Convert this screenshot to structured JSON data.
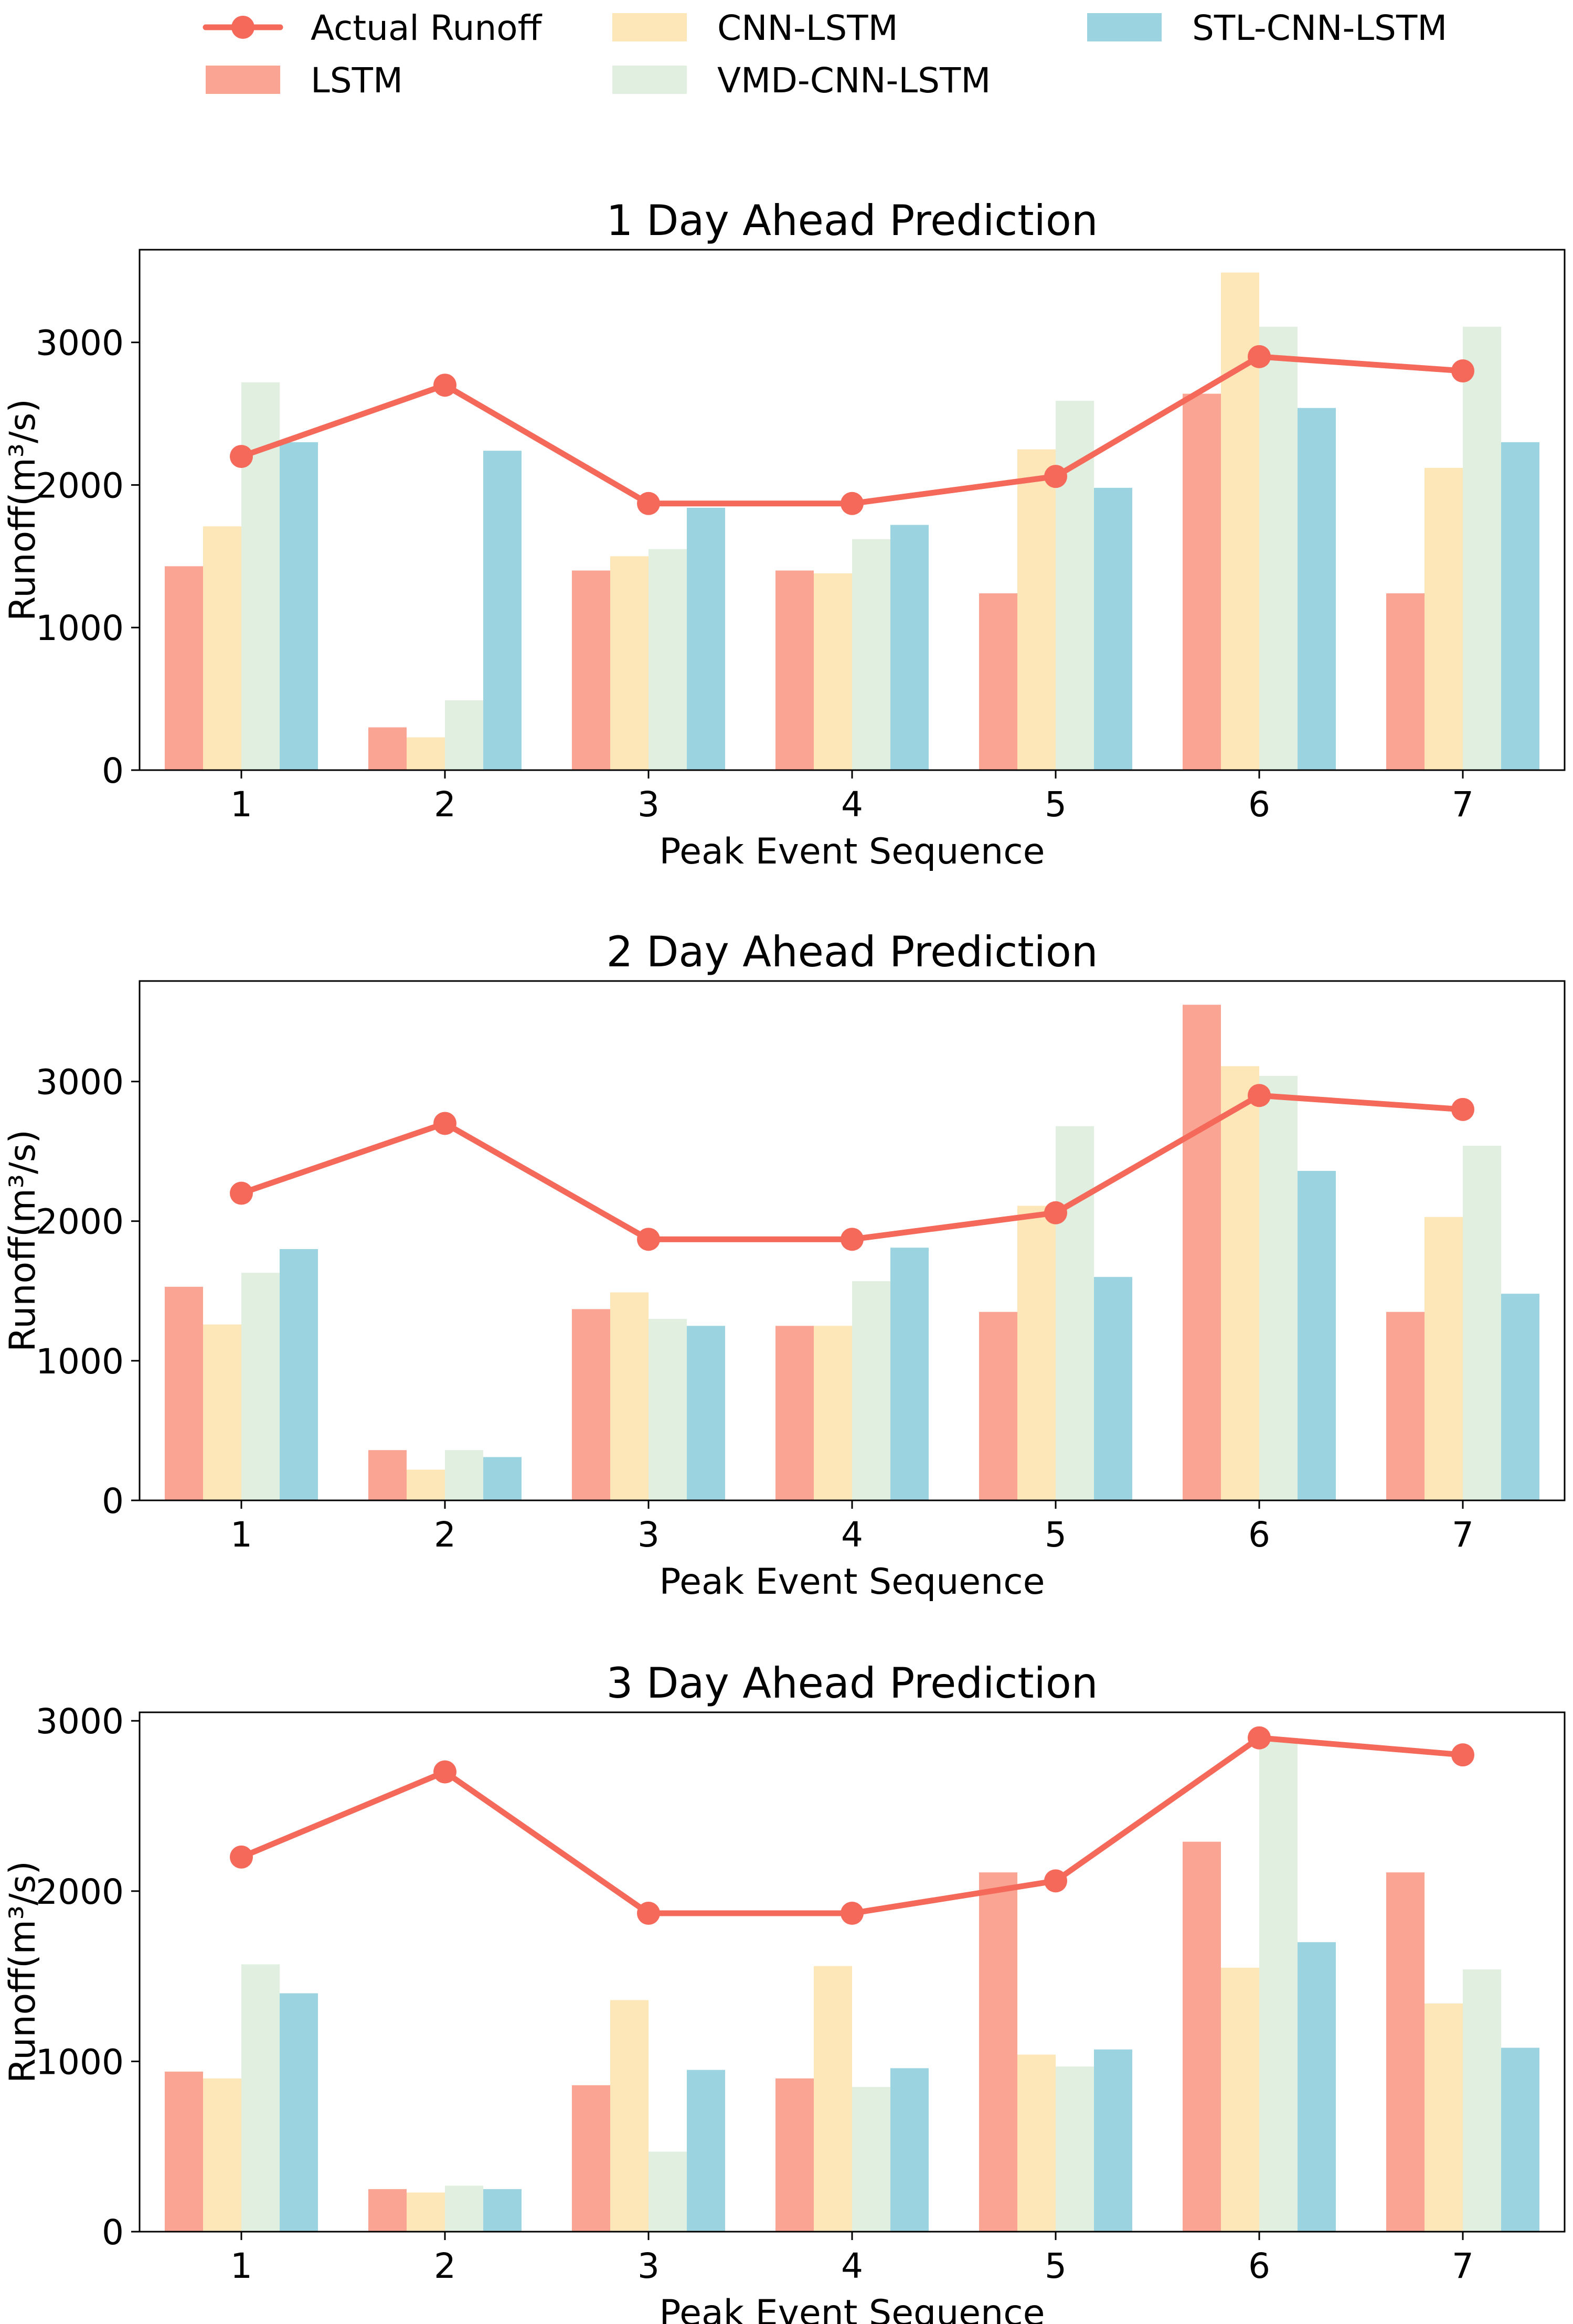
{
  "legend": {
    "items": [
      {
        "label": "Actual Runoff",
        "kind": "line",
        "color": "#F4695A"
      },
      {
        "label": "LSTM",
        "kind": "bar",
        "color": "#FAA593"
      },
      {
        "label": "CNN-LSTM",
        "kind": "bar",
        "color": "#FDE7B8"
      },
      {
        "label": "VMD-CNN-LSTM",
        "kind": "bar",
        "color": "#E0EFDF"
      },
      {
        "label": "STL-CNN-LSTM",
        "kind": "bar",
        "color": "#9BD3E0"
      }
    ]
  },
  "chart_data": [
    {
      "type": "bar",
      "title": "1 Day Ahead Prediction",
      "xlabel": "Peak Event Sequence",
      "ylabel": "Runoff(m³/s)",
      "categories": [
        "1",
        "2",
        "3",
        "4",
        "5",
        "6",
        "7"
      ],
      "ylim": [
        0,
        3650
      ],
      "yticks": [
        0,
        1000,
        2000,
        3000
      ],
      "series": [
        {
          "name": "LSTM",
          "values": [
            1430,
            300,
            1400,
            1400,
            1240,
            2640,
            1240
          ]
        },
        {
          "name": "CNN-LSTM",
          "values": [
            1710,
            230,
            1500,
            1380,
            2250,
            3490,
            2120
          ]
        },
        {
          "name": "VMD-CNN-LSTM",
          "values": [
            2720,
            490,
            1550,
            1620,
            2590,
            3110,
            3110
          ]
        },
        {
          "name": "STL-CNN-LSTM",
          "values": [
            2300,
            2240,
            1840,
            1720,
            1980,
            2540,
            2300
          ]
        }
      ],
      "line": {
        "name": "Actual Runoff",
        "values": [
          2200,
          2700,
          1870,
          1870,
          2060,
          2900,
          2800
        ]
      }
    },
    {
      "type": "bar",
      "title": "2 Day Ahead Prediction",
      "xlabel": "Peak Event Sequence",
      "ylabel": "Runoff(m³/s)",
      "categories": [
        "1",
        "2",
        "3",
        "4",
        "5",
        "6",
        "7"
      ],
      "ylim": [
        0,
        3720
      ],
      "yticks": [
        0,
        1000,
        2000,
        3000
      ],
      "series": [
        {
          "name": "LSTM",
          "values": [
            1530,
            360,
            1370,
            1250,
            1350,
            3550,
            1350
          ]
        },
        {
          "name": "CNN-LSTM",
          "values": [
            1260,
            220,
            1490,
            1250,
            2110,
            3110,
            2030
          ]
        },
        {
          "name": "VMD-CNN-LSTM",
          "values": [
            1630,
            360,
            1300,
            1570,
            2680,
            3040,
            2540
          ]
        },
        {
          "name": "STL-CNN-LSTM",
          "values": [
            1800,
            310,
            1250,
            1810,
            1600,
            2360,
            1480
          ]
        }
      ],
      "line": {
        "name": "Actual Runoff",
        "values": [
          2200,
          2700,
          1870,
          1870,
          2060,
          2900,
          2800
        ]
      }
    },
    {
      "type": "bar",
      "title": "3 Day Ahead Prediction",
      "xlabel": "Peak Event Sequence",
      "ylabel": "Runoff(m³/s)",
      "categories": [
        "1",
        "2",
        "3",
        "4",
        "5",
        "6",
        "7"
      ],
      "ylim": [
        0,
        3050
      ],
      "yticks": [
        0,
        1000,
        2000,
        3000
      ],
      "series": [
        {
          "name": "LSTM",
          "values": [
            940,
            250,
            860,
            900,
            2110,
            2290,
            2110
          ]
        },
        {
          "name": "CNN-LSTM",
          "values": [
            900,
            230,
            1360,
            1560,
            1040,
            1550,
            1340
          ]
        },
        {
          "name": "VMD-CNN-LSTM",
          "values": [
            1570,
            270,
            470,
            850,
            970,
            2900,
            1540
          ]
        },
        {
          "name": "STL-CNN-LSTM",
          "values": [
            1400,
            250,
            950,
            960,
            1070,
            1700,
            1080
          ]
        }
      ],
      "line": {
        "name": "Actual Runoff",
        "values": [
          2200,
          2700,
          1870,
          1870,
          2060,
          2900,
          2800
        ]
      }
    }
  ]
}
